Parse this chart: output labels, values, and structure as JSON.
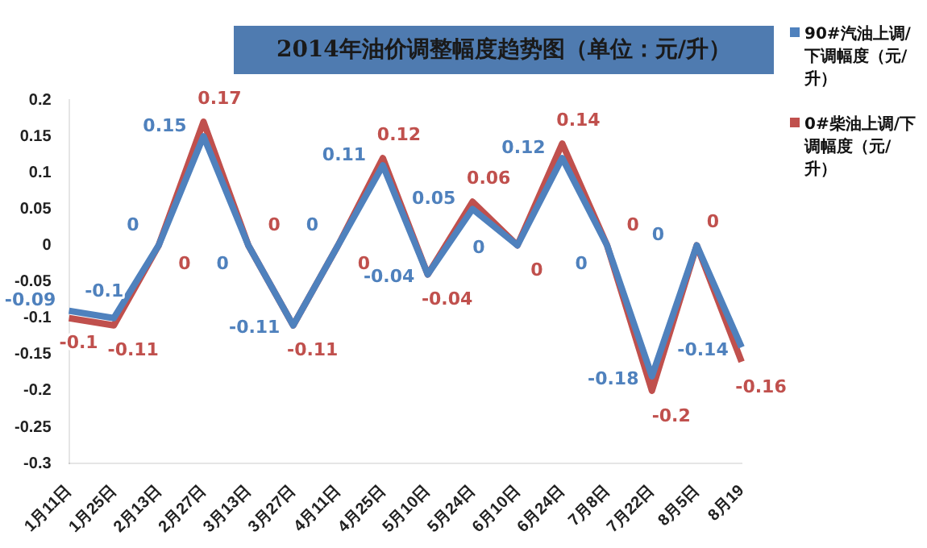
{
  "chart_data": {
    "type": "line",
    "title": "2014年油价调整幅度趋势图（单位：元/升）",
    "categories": [
      "1月11日",
      "1月25日",
      "2月13日",
      "2月27日",
      "3月13日",
      "3月27日",
      "4月11日",
      "4月25日",
      "5月10日",
      "5月24日",
      "6月10日",
      "6月24日",
      "7月8日",
      "7月22日",
      "8月5日",
      "8月19"
    ],
    "series": [
      {
        "name": "90#汽油上调/下调幅度（元/升）",
        "color": "#4f81bd",
        "values": [
          -0.09,
          -0.1,
          0,
          0.15,
          0,
          -0.11,
          0,
          0.11,
          -0.04,
          0.05,
          0,
          0.12,
          0,
          -0.18,
          0,
          -0.14
        ]
      },
      {
        "name": "0#柴油上调/下调幅度（元/升）",
        "color": "#c0504d",
        "values": [
          -0.1,
          -0.11,
          0,
          0.17,
          0,
          -0.11,
          0,
          0.12,
          -0.04,
          0.06,
          0,
          0.14,
          0,
          -0.2,
          0,
          -0.16
        ]
      }
    ],
    "ylim": [
      -0.3,
      0.2
    ],
    "yticks": [
      -0.3,
      -0.25,
      -0.2,
      -0.15,
      -0.1,
      -0.05,
      0,
      0.05,
      0.1,
      0.15,
      0.2
    ],
    "grid": false,
    "legend": "top right",
    "data_labels": true,
    "marker": "none",
    "line_style": "solid"
  }
}
